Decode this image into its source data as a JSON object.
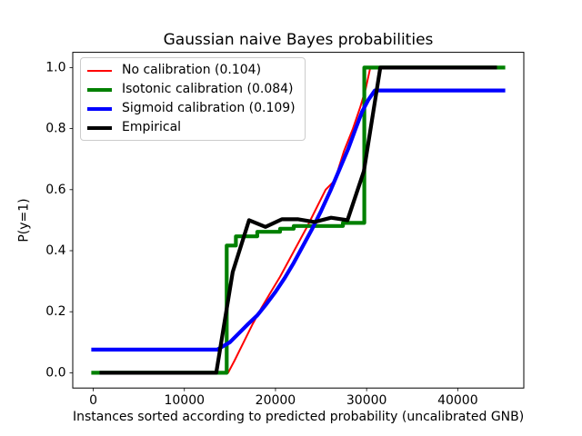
{
  "chart_data": {
    "type": "line",
    "title": "Gaussian naive Bayes probabilities",
    "xlabel": "Instances sorted according to predicted probability (uncalibrated GNB)",
    "ylabel": "P(y=1)",
    "xlim": [
      -2250,
      47250
    ],
    "ylim": [
      -0.05,
      1.05
    ],
    "xticks": [
      0,
      10000,
      20000,
      30000,
      40000
    ],
    "yticks": [
      0.0,
      0.2,
      0.4,
      0.6,
      0.8,
      1.0
    ],
    "grid": false,
    "background": "#ffffff",
    "axes_frame_color": "#000000",
    "legend": {
      "position": "upper left",
      "border_color": "#cccccc",
      "background": "#ffffff"
    },
    "series": [
      {
        "key": "no-calibration",
        "name": "No calibration (0.104)",
        "color": "#ff0000",
        "linewidth": 2,
        "x": [
          0,
          14800,
          15500,
          16500,
          17500,
          18500,
          19500,
          20500,
          21500,
          22500,
          23500,
          24500,
          25500,
          26500,
          27500,
          28500,
          29300,
          29900,
          30400,
          45000
        ],
        "y": [
          0.0,
          0.0,
          0.04,
          0.1,
          0.16,
          0.215,
          0.265,
          0.315,
          0.37,
          0.425,
          0.48,
          0.54,
          0.6,
          0.63,
          0.725,
          0.8,
          0.87,
          0.93,
          1.0,
          1.0
        ]
      },
      {
        "key": "isotonic-calibration",
        "name": "Isotonic calibration (0.084)",
        "color": "#008000",
        "linewidth": 4.2,
        "x": [
          0,
          14650,
          14650,
          15650,
          15650,
          18000,
          18000,
          20500,
          20500,
          22000,
          22000,
          27400,
          27400,
          29750,
          29750,
          45000
        ],
        "y": [
          0.0,
          0.0,
          0.417,
          0.417,
          0.447,
          0.447,
          0.462,
          0.462,
          0.472,
          0.472,
          0.481,
          0.481,
          0.491,
          0.491,
          1.0,
          1.0
        ]
      },
      {
        "key": "sigmoid-calibration",
        "name": "Sigmoid calibration (0.109)",
        "color": "#0000ff",
        "linewidth": 4.2,
        "x": [
          0,
          13600,
          15000,
          16000,
          17000,
          18000,
          19000,
          20000,
          21000,
          22000,
          23000,
          24000,
          25000,
          26000,
          27000,
          28000,
          28800,
          29500,
          30200,
          30900,
          45000
        ],
        "y": [
          0.076,
          0.076,
          0.1,
          0.13,
          0.16,
          0.188,
          0.225,
          0.265,
          0.31,
          0.36,
          0.415,
          0.47,
          0.53,
          0.595,
          0.665,
          0.735,
          0.8,
          0.855,
          0.895,
          0.925,
          0.925
        ]
      },
      {
        "key": "empirical",
        "name": "Empirical",
        "color": "#000000",
        "linewidth": 4.2,
        "x": [
          900,
          2700,
          4500,
          6300,
          8100,
          9900,
          11700,
          13500,
          15300,
          17100,
          18900,
          20700,
          22500,
          24300,
          26100,
          27900,
          29700,
          31500,
          33300,
          35100,
          36900,
          38700,
          40500,
          42300,
          44100
        ],
        "y": [
          0.0,
          0.0,
          0.0,
          0.0,
          0.0,
          0.0,
          0.0,
          0.0,
          0.33,
          0.5,
          0.478,
          0.503,
          0.503,
          0.494,
          0.508,
          0.5,
          0.66,
          1.0,
          1.0,
          1.0,
          1.0,
          1.0,
          1.0,
          1.0,
          1.0
        ]
      }
    ]
  }
}
